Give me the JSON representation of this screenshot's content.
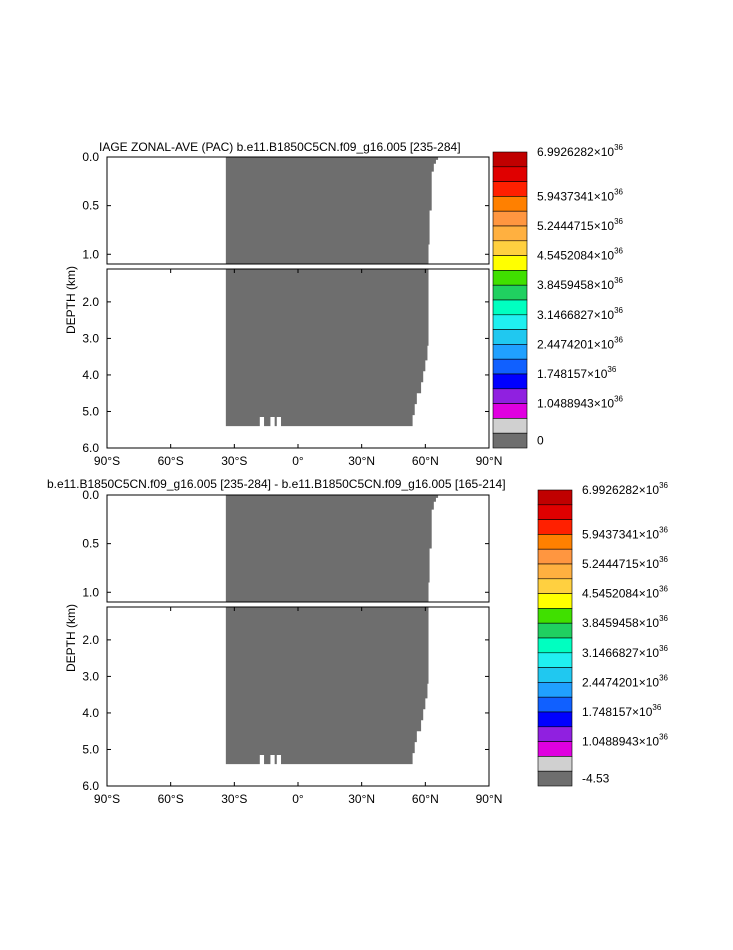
{
  "chart_data": [
    {
      "type": "heatmap",
      "title": "IAGE ZONAL-AVE (PAC) b.e11.B1850C5CN.f09_g16.005 [235-284]",
      "ylabel": "DEPTH (km)",
      "x_ticks": [
        "90°S",
        "60°S",
        "30°S",
        "0°",
        "30°N",
        "60°N",
        "90°N"
      ],
      "xlim": [
        -90,
        90
      ],
      "upper_y_ticks": [
        "0.0",
        "0.5",
        "1.0"
      ],
      "upper_ylim": [
        0,
        1.1
      ],
      "lower_y_ticks": [
        "2.0",
        "3.0",
        "4.0",
        "5.0",
        "6.0"
      ],
      "lower_ylim": [
        1.1,
        6.0
      ],
      "fill_color": "#6e6e6e",
      "data_extent": {
        "lat_south": -34,
        "bottom_depth_km": 5.4,
        "north_edge_by_depth": [
          {
            "depth": 0.0,
            "lat": 66
          },
          {
            "depth": 0.03,
            "lat": 65
          },
          {
            "depth": 0.07,
            "lat": 64
          },
          {
            "depth": 0.15,
            "lat": 63
          },
          {
            "depth": 0.55,
            "lat": 62
          },
          {
            "depth": 0.9,
            "lat": 61.5
          },
          {
            "depth": 3.2,
            "lat": 61
          },
          {
            "depth": 3.6,
            "lat": 60
          },
          {
            "depth": 3.9,
            "lat": 59
          },
          {
            "depth": 4.2,
            "lat": 58
          },
          {
            "depth": 4.5,
            "lat": 56
          },
          {
            "depth": 4.8,
            "lat": 55
          },
          {
            "depth": 5.1,
            "lat": 54
          },
          {
            "depth": 5.4,
            "lat": 54
          }
        ],
        "bottom_notches": [
          {
            "lat_start": -18,
            "lat_end": -16,
            "top_depth": 5.15
          },
          {
            "lat_start": -13,
            "lat_end": -11,
            "top_depth": 5.15
          },
          {
            "lat_start": -10,
            "lat_end": -8,
            "top_depth": 5.15
          }
        ]
      },
      "colorbar": {
        "colors": [
          "#c00000",
          "#e00000",
          "#ff2000",
          "#ff8000",
          "#ff9640",
          "#ffb040",
          "#ffd040",
          "#ffff00",
          "#40e000",
          "#20d060",
          "#00ffc0",
          "#20f0f0",
          "#20c8f0",
          "#20a0ff",
          "#1060ff",
          "#0000ff",
          "#9020e0",
          "#e000e0",
          "#d0d0d0",
          "#6e6e6e"
        ],
        "labels": [
          {
            "mantissa": "6.9926282",
            "exp": "36"
          },
          {
            "mantissa": "5.9437341",
            "exp": "36"
          },
          {
            "mantissa": "5.2444715",
            "exp": "36"
          },
          {
            "mantissa": "4.5452084",
            "exp": "36"
          },
          {
            "mantissa": "3.8459458",
            "exp": "36"
          },
          {
            "mantissa": "3.1466827",
            "exp": "36"
          },
          {
            "mantissa": "2.4474201",
            "exp": "36"
          },
          {
            "mantissa": "1.748157",
            "exp": "36"
          },
          {
            "mantissa": "1.0488943",
            "exp": "36"
          },
          {
            "mantissa": "0",
            "exp": ""
          }
        ]
      }
    },
    {
      "type": "heatmap",
      "title": "b.e11.B1850C5CN.f09_g16.005 [235-284] - b.e11.B1850C5CN.f09_g16.005 [165-214]",
      "ylabel": "DEPTH (km)",
      "x_ticks": [
        "90°S",
        "60°S",
        "30°S",
        "0°",
        "30°N",
        "60°N",
        "90°N"
      ],
      "xlim": [
        -90,
        90
      ],
      "upper_y_ticks": [
        "0.0",
        "0.5",
        "1.0"
      ],
      "upper_ylim": [
        0,
        1.1
      ],
      "lower_y_ticks": [
        "2.0",
        "3.0",
        "4.0",
        "5.0",
        "6.0"
      ],
      "lower_ylim": [
        1.1,
        6.0
      ],
      "fill_color": "#6e6e6e",
      "data_extent": {
        "lat_south": -34,
        "bottom_depth_km": 5.4,
        "north_edge_by_depth": [
          {
            "depth": 0.0,
            "lat": 66
          },
          {
            "depth": 0.03,
            "lat": 65
          },
          {
            "depth": 0.07,
            "lat": 64
          },
          {
            "depth": 0.15,
            "lat": 63
          },
          {
            "depth": 0.55,
            "lat": 62
          },
          {
            "depth": 0.9,
            "lat": 61.5
          },
          {
            "depth": 3.2,
            "lat": 61
          },
          {
            "depth": 3.6,
            "lat": 60
          },
          {
            "depth": 3.9,
            "lat": 59
          },
          {
            "depth": 4.2,
            "lat": 58
          },
          {
            "depth": 4.5,
            "lat": 56
          },
          {
            "depth": 4.8,
            "lat": 55
          },
          {
            "depth": 5.1,
            "lat": 54
          },
          {
            "depth": 5.4,
            "lat": 54
          }
        ],
        "bottom_notches": [
          {
            "lat_start": -18,
            "lat_end": -16,
            "top_depth": 5.15
          },
          {
            "lat_start": -13,
            "lat_end": -11,
            "top_depth": 5.15
          },
          {
            "lat_start": -10,
            "lat_end": -8,
            "top_depth": 5.15
          }
        ]
      },
      "colorbar": {
        "colors": [
          "#c00000",
          "#e00000",
          "#ff2000",
          "#ff8000",
          "#ff9640",
          "#ffb040",
          "#ffd040",
          "#ffff00",
          "#40e000",
          "#20d060",
          "#00ffc0",
          "#20f0f0",
          "#20c8f0",
          "#20a0ff",
          "#1060ff",
          "#0000ff",
          "#9020e0",
          "#e000e0",
          "#d0d0d0",
          "#6e6e6e"
        ],
        "labels": [
          {
            "mantissa": "6.9926282",
            "exp": "36"
          },
          {
            "mantissa": "5.9437341",
            "exp": "36"
          },
          {
            "mantissa": "5.2444715",
            "exp": "36"
          },
          {
            "mantissa": "4.5452084",
            "exp": "36"
          },
          {
            "mantissa": "3.8459458",
            "exp": "36"
          },
          {
            "mantissa": "3.1466827",
            "exp": "36"
          },
          {
            "mantissa": "2.4474201",
            "exp": "36"
          },
          {
            "mantissa": "1.748157",
            "exp": "36"
          },
          {
            "mantissa": "1.0488943",
            "exp": "36"
          },
          {
            "mantissa": "-4.53",
            "exp": ""
          }
        ]
      }
    }
  ]
}
